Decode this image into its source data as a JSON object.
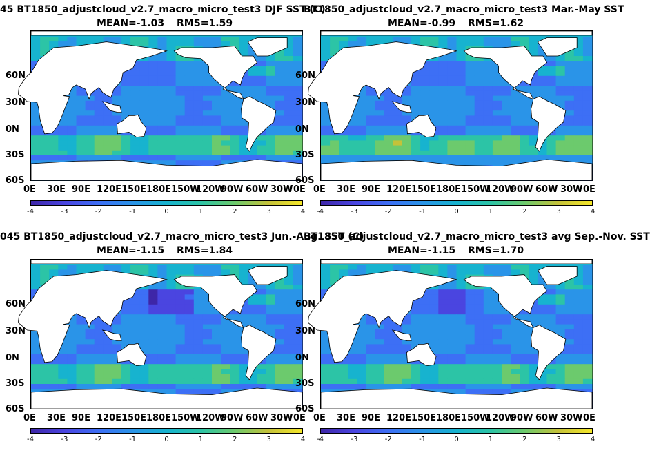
{
  "panels": [
    {
      "id": "tl",
      "title": "45 BT1850_adjustcloud_v2.7_macro_micro_test3  DJF SST (C)",
      "mean": "MEAN=-1.03",
      "rms": "RMS=1.59",
      "pattern": "djf"
    },
    {
      "id": "tr",
      "title": "BT1850_adjustcloud_v2.7_macro_micro_test3 Mar.-May SST",
      "mean": "MEAN=-0.99",
      "rms": "RMS=1.62",
      "pattern": "mam"
    },
    {
      "id": "bl",
      "title": "045 BT1850_adjustcloud_v2.7_macro_micro_test3  Jun.-Aug. SST (C)",
      "mean": "MEAN=-1.15",
      "rms": "RMS=1.84",
      "pattern": "jja"
    },
    {
      "id": "br",
      "title": "BT1850_adjustcloud_v2.7_macro_micro_test3 avg Sep.-Nov. SST",
      "mean": "MEAN=-1.15",
      "rms": "RMS=1.70",
      "pattern": "son"
    }
  ],
  "lat_labels": [
    "60N",
    "30N",
    "0N",
    "30S",
    "60S"
  ],
  "lon_labels": [
    "0E",
    "30E",
    "90E",
    "120E",
    "150E",
    "180E",
    "150W",
    "120W",
    "90W",
    "60W",
    "30W",
    "0E"
  ],
  "colorbar": {
    "ticks": [
      "-4",
      "-3",
      "-2",
      "-1",
      "0",
      "1",
      "2",
      "3",
      "4"
    ],
    "colors": [
      "#3e26a8",
      "#4a45e0",
      "#3d6ff5",
      "#2a94e8",
      "#17b3cf",
      "#2cc4a6",
      "#6cca6d",
      "#c4c23a",
      "#f5e72a"
    ]
  },
  "colors": {
    "ocean_base": "#2d8be6",
    "land": "#ffffff",
    "coast": "#000000"
  }
}
